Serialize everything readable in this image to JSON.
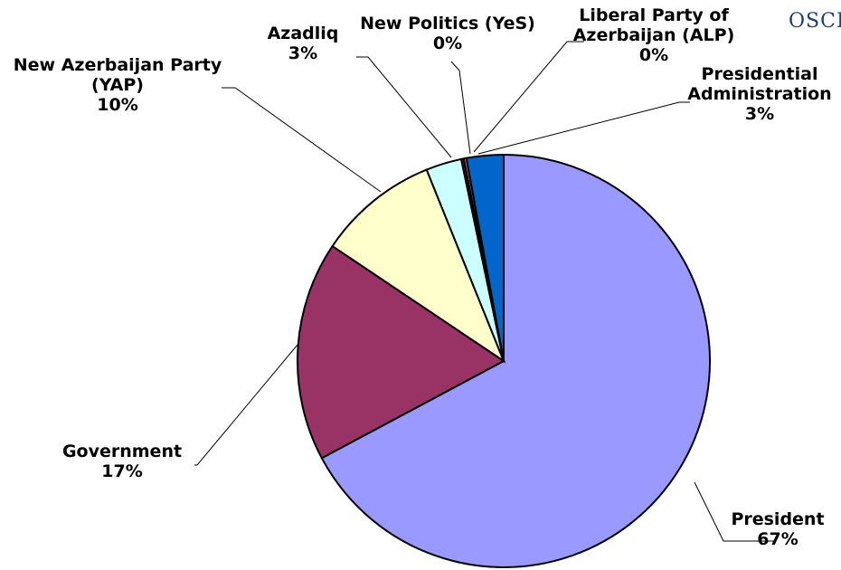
{
  "logo": {
    "text": "OSCE"
  },
  "chart_data": {
    "type": "pie",
    "start_angle_deg": 90,
    "direction": "clockwise",
    "slices": [
      {
        "label": [
          "President"
        ],
        "pct": "67%",
        "value": 67.2,
        "color": "#9999FF"
      },
      {
        "label": [
          "Government"
        ],
        "pct": "17%",
        "value": 17.2,
        "color": "#993366"
      },
      {
        "label": [
          "New Azerbaijan Party",
          "(YAP)"
        ],
        "pct": "10%",
        "value": 9.5,
        "color": "#FFFFCC"
      },
      {
        "label": [
          "Azadliq"
        ],
        "pct": "3%",
        "value": 2.8,
        "color": "#CCFFFF"
      },
      {
        "label": [
          "New Politics (YeS)"
        ],
        "pct": "0%",
        "value": 0.2,
        "color": "#660066"
      },
      {
        "label": [
          "Liberal Party of",
          "Azerbaijan (ALP)"
        ],
        "pct": "0%",
        "value": 0.2,
        "color": "#FF8080"
      },
      {
        "label": [
          "Presidential",
          "Administration"
        ],
        "pct": "3%",
        "value": 2.9,
        "color": "#0066CC"
      }
    ]
  }
}
